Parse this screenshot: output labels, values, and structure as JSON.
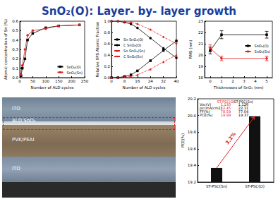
{
  "title": "SnO₂(O): Layer- by- layer growth",
  "chart_data": [
    {
      "type": "line",
      "x_label": "Number of ALD cycles",
      "y_label": "Atomic concentration of Sn (%)",
      "x": [
        5,
        10,
        20,
        30,
        50,
        100,
        150,
        230
      ],
      "series": [
        {
          "name": "SnO₂(O)",
          "color": "#000000",
          "marker": "square",
          "line_style": "solid",
          "values": [
            0.02,
            0.1,
            0.2,
            0.4,
            0.47,
            0.53,
            0.55,
            0.56
          ]
        },
        {
          "name": "SnO₂(Sn)",
          "color": "#e02020",
          "marker": "circle",
          "line_style": "solid",
          "values": [
            0.03,
            0.13,
            0.3,
            0.45,
            0.5,
            0.52,
            0.55,
            0.56
          ]
        }
      ],
      "xlim": [
        0,
        250
      ],
      "xticks": [
        0,
        50,
        100,
        150,
        200,
        250
      ],
      "ylim": [
        0,
        0.6
      ],
      "yticks": [
        {
          "value": 0,
          "label": "0.0"
        },
        0.1,
        0.2,
        0.3,
        0.4,
        0.5,
        0.6
      ],
      "grid": false,
      "legend": "lower right"
    },
    {
      "type": "line",
      "x_label": "Number of ALD cycles",
      "y_label": "Relative XPS Atomic Fraction",
      "x": [
        0,
        4,
        8,
        12,
        16,
        24,
        32,
        40
      ],
      "series": [
        {
          "name": "Sn SnO₂(O)",
          "color": "#000000",
          "marker": "square",
          "line_style": "solid",
          "values": [
            0,
            0,
            0.02,
            0.05,
            0.12,
            0.3,
            0.48,
            0.65
          ]
        },
        {
          "name": "C SnO₂(O)",
          "color": "#000000",
          "marker": "circle",
          "line_style": "solid",
          "values": [
            1,
            1,
            0.98,
            0.95,
            0.88,
            0.7,
            0.52,
            0.35
          ]
        },
        {
          "name": "Sn SnO₂(Sn)",
          "color": "#e02020",
          "marker": "triangle",
          "line_style": "dashed",
          "values": [
            0,
            0,
            0.01,
            0.02,
            0.05,
            0.15,
            0.28,
            0.4
          ]
        },
        {
          "name": "C SnO₂(Sn)",
          "color": "#e02020",
          "marker": "diamond",
          "line_style": "dashed",
          "values": [
            1,
            1,
            0.99,
            0.98,
            0.95,
            0.85,
            0.72,
            0.6
          ]
        }
      ],
      "xlim": [
        0,
        40
      ],
      "xticks": [
        0,
        8,
        16,
        24,
        32,
        40
      ],
      "ylim": [
        0,
        1
      ],
      "yticks": [
        {
          "value": 0,
          "label": "0.0"
        },
        0.2,
        0.4,
        0.6,
        0.8,
        {
          "value": 1,
          "label": "1.0"
        }
      ],
      "grid": false,
      "legend": "center left"
    },
    {
      "type": "line",
      "x_label": "Thicknesses of SnO₂ (nm)",
      "y_label": "RMS (nm)",
      "x": [
        0,
        1,
        5
      ],
      "series": [
        {
          "name": "SnO₂(O)",
          "color": "#000000",
          "marker": "square",
          "line_style": "solid",
          "values": [
            20.4,
            21.8,
            21.8
          ],
          "errors": [
            0.3,
            0.35,
            0.3
          ]
        },
        {
          "name": "SnO₂(Sn)",
          "color": "#e02020",
          "marker": "circle",
          "line_style": "solid",
          "values": [
            20.6,
            19.7,
            19.7
          ],
          "errors": [
            0.3,
            0.2,
            0.2
          ]
        }
      ],
      "xlim": [
        -0.5,
        5.5
      ],
      "xticks": [
        0,
        1,
        2,
        3,
        4,
        5
      ],
      "ylim": [
        18,
        23
      ],
      "yticks": [
        18,
        19,
        20,
        21,
        22,
        23
      ],
      "grid": false,
      "legend": "center right"
    },
    {
      "type": "bar",
      "y_label": "PCE(%)",
      "categories": [
        "ST-PSC(Sn)",
        "ST-PSC(O)"
      ],
      "values": [
        19.37,
        19.99
      ],
      "color": "#111111",
      "ylim": [
        19.2,
        20.2
      ],
      "yticks": [
        19.2,
        19.4,
        19.6,
        19.8,
        {
          "value": 20,
          "label": "20.0"
        },
        20.2
      ],
      "grid": false,
      "annotation": "3.2%",
      "table": {
        "columns": [
          "ST-PSC(O)",
          "ST-PSC(Sn)"
        ],
        "rows": [
          {
            "label": "Voc(V)",
            "values": [
              "1.130",
              "1.126"
            ]
          },
          {
            "label": "Jsc(mA/cm2)",
            "values": [
              "22.45",
              "22.31"
            ]
          },
          {
            "label": "FF(%)",
            "values": [
              "78.59",
              "77.04"
            ]
          },
          {
            "label": "PCE(%)",
            "values": [
              "19.99",
              "19.37"
            ]
          }
        ]
      }
    }
  ],
  "image": {
    "labels": [
      "ITO",
      "ALD SnO₂",
      "PVK/PEAI",
      "ITO"
    ]
  }
}
